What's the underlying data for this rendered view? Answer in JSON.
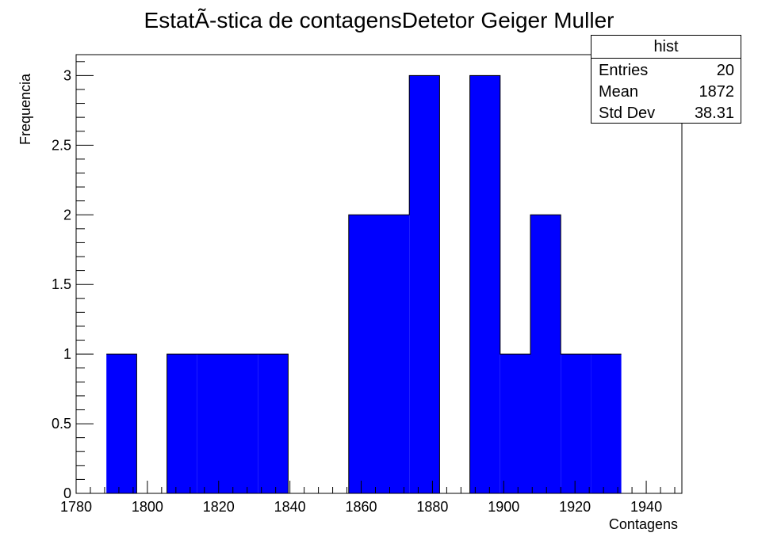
{
  "chart_data": {
    "type": "bar",
    "title": "EstatÃ-stica de contagensDetetor Geiger Muller",
    "xlabel": "Contagens",
    "ylabel": "Frequencia",
    "xlim": [
      1780,
      1950
    ],
    "ylim": [
      0,
      3.15
    ],
    "x_ticks": [
      "1780",
      "1800",
      "1820",
      "1840",
      "1860",
      "1880",
      "1900",
      "1920",
      "1940"
    ],
    "y_ticks": [
      "0",
      "0.5",
      "1",
      "1.5",
      "2",
      "2.5",
      "3"
    ],
    "bin_width": 8.5,
    "bin_edges": [
      1788.5,
      1797,
      1805.5,
      1814,
      1822.5,
      1831,
      1839.5,
      1848,
      1856.5,
      1865,
      1873.5,
      1882,
      1890.5,
      1899,
      1907.5,
      1916,
      1924.5,
      1933
    ],
    "values": [
      1,
      0,
      1,
      1,
      1,
      1,
      0,
      0,
      2,
      2,
      3,
      0,
      3,
      1,
      2,
      1,
      1
    ],
    "bar_color": "#0000ff",
    "grid": false,
    "legend": "none",
    "stats_box": {
      "title": "hist",
      "rows": [
        {
          "label": "Entries",
          "value": "20"
        },
        {
          "label": "Mean",
          "value": "1872"
        },
        {
          "label": "Std Dev",
          "value": "38.31"
        }
      ],
      "placement": "top-right"
    }
  }
}
